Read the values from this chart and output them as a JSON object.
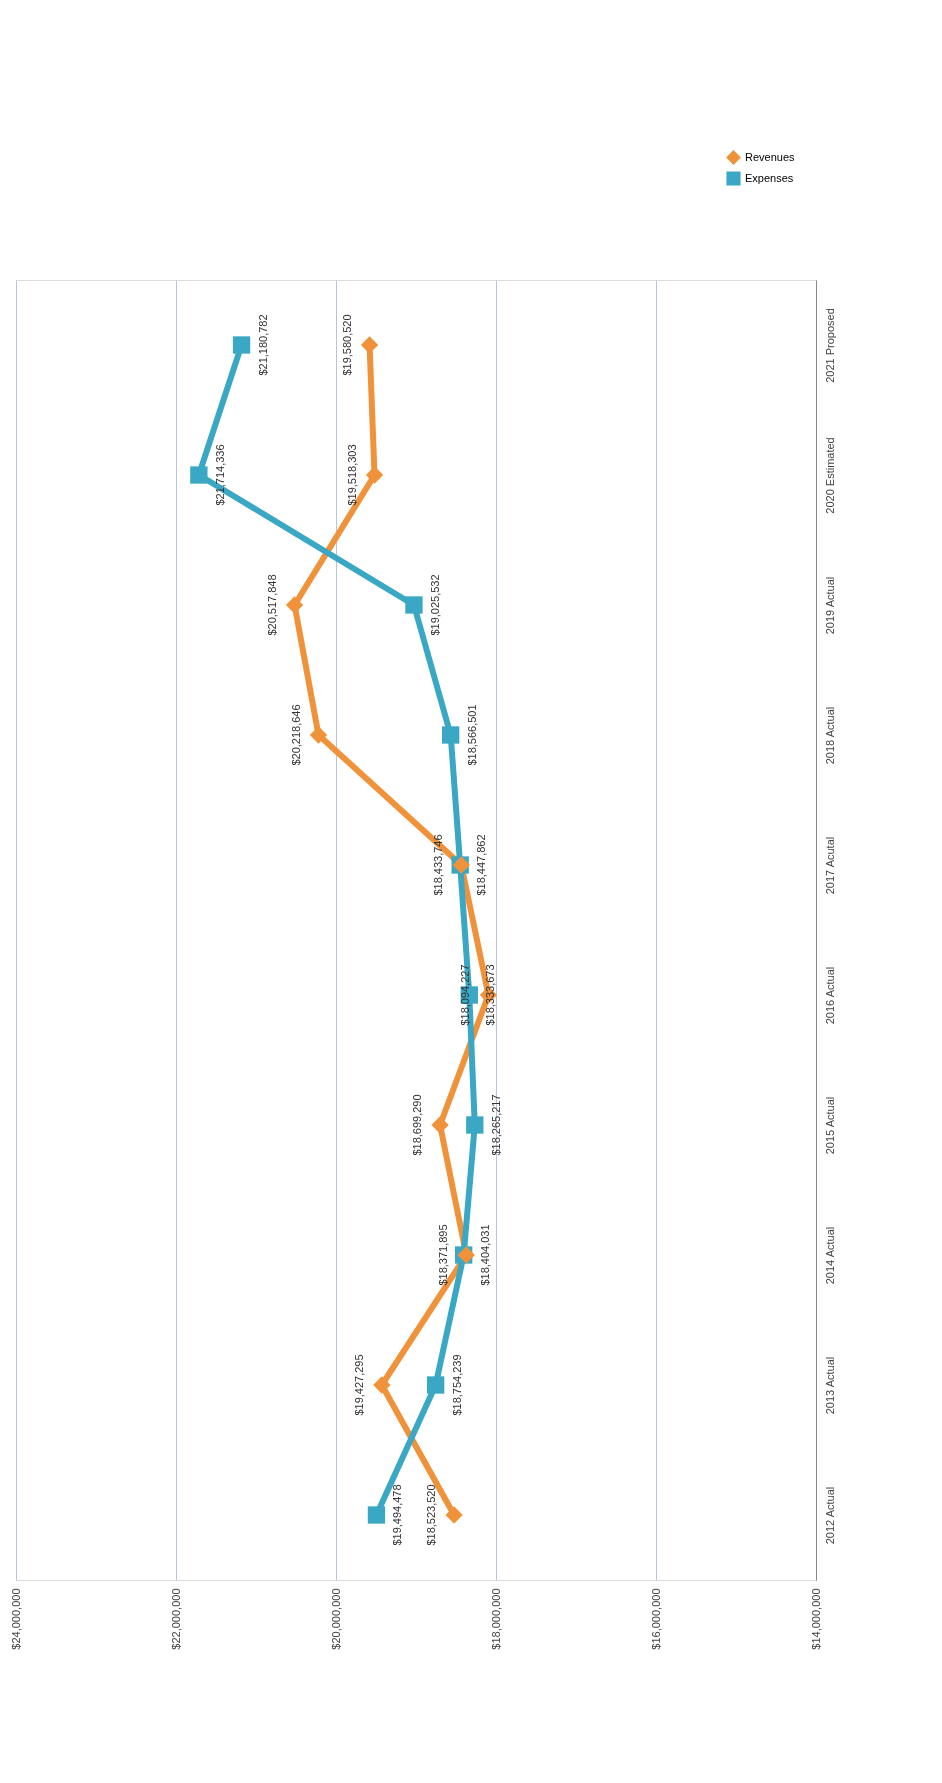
{
  "chart_data": {
    "type": "line",
    "orientation": "horizontal",
    "categories": [
      "2021 Proposed",
      "2020 Estimated",
      "2019 Actual",
      "2018 Actual",
      "2017 Acutal",
      "2016 Actual",
      "2015 Actual",
      "2014 Actual",
      "2013 Actual",
      "2012 Actual"
    ],
    "series": [
      {
        "name": "Revenues",
        "color": "#f0923a",
        "marker": "diamond",
        "values": [
          19580520,
          19518303,
          20517848,
          20218646,
          18433746,
          18094227,
          18699290,
          18371895,
          19427295,
          18523520
        ],
        "value_labels": [
          "$19,580,520",
          "$19,518,303",
          "$20,517,848",
          "$20,218,646",
          "$18,433,746",
          "$18,094,227",
          "$18,699,290",
          "$18,371,895",
          "$19,427,295",
          "$18,523,520"
        ]
      },
      {
        "name": "Expenses",
        "color": "#3aa7c4",
        "marker": "square",
        "values": [
          21180782,
          21714336,
          19025532,
          18566501,
          18447862,
          18333673,
          18265217,
          18404031,
          18754239,
          19494478
        ],
        "value_labels": [
          "$21,180,782",
          "$21,714,336",
          "$19,025,532",
          "$18,566,501",
          "$18,447,862",
          "$18,333,673",
          "$18,265,217",
          "$18,404,031",
          "$18,754,239",
          "$19,494,478"
        ]
      }
    ],
    "xlim": [
      24000000,
      14000000
    ],
    "xticks": [
      {
        "value": 24000000,
        "label": "$24,000,000"
      },
      {
        "value": 22000000,
        "label": "$22,000,000"
      },
      {
        "value": 20000000,
        "label": "$20,000,000"
      },
      {
        "value": 18000000,
        "label": "$18,000,000"
      },
      {
        "value": 16000000,
        "label": "$16,000,000"
      },
      {
        "value": 14000000,
        "label": "$14,000,000"
      }
    ],
    "grid": "x",
    "legend": "top right",
    "line_style": "solid"
  }
}
